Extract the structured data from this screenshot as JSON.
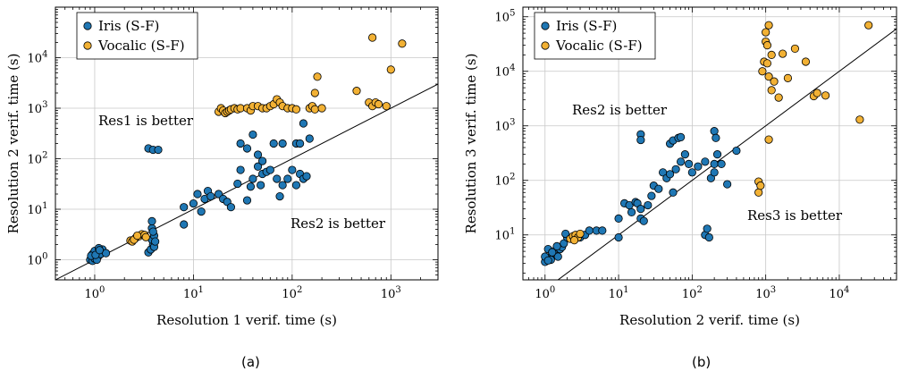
{
  "chart_data": [
    {
      "id": "a",
      "type": "scatter",
      "caption": "(a)",
      "xlabel": "Resolution 1 verif. time (s)",
      "ylabel": "Resolution 2 verif. time (s)",
      "xscale": "log",
      "yscale": "log",
      "xlim": [
        0.4,
        3000
      ],
      "ylim": [
        0.4,
        100000
      ],
      "xticks": [
        1,
        10,
        100,
        1000
      ],
      "yticks": [
        1,
        10,
        100,
        1000,
        10000
      ],
      "grid": true,
      "diagonal": true,
      "legend_position": "top-left",
      "annotations": [
        "Res1 is better",
        "Res2 is better"
      ],
      "series": [
        {
          "name": "Iris (S-F)",
          "color": "#1f77b4",
          "points": [
            [
              0.9,
              1.0
            ],
            [
              0.95,
              1.3
            ],
            [
              1.0,
              1.1
            ],
            [
              1.05,
              1.4
            ],
            [
              1.1,
              1.2
            ],
            [
              1.2,
              1.6
            ],
            [
              1.0,
              1.5
            ],
            [
              1.1,
              1.7
            ],
            [
              0.95,
              0.95
            ],
            [
              1.0,
              1.05
            ],
            [
              1.05,
              1.0
            ],
            [
              1.15,
              1.3
            ],
            [
              1.3,
              1.35
            ],
            [
              0.92,
              1.2
            ],
            [
              1.02,
              1.25
            ],
            [
              1.12,
              1.55
            ],
            [
              3.5,
              1.4
            ],
            [
              3.7,
              1.6
            ],
            [
              3.9,
              2.0
            ],
            [
              4.0,
              1.8
            ],
            [
              3.8,
              2.5
            ],
            [
              4.0,
              3.0
            ],
            [
              3.8,
              4.2
            ],
            [
              3.8,
              5.8
            ],
            [
              3.9,
              3.6
            ],
            [
              4.1,
              2.3
            ],
            [
              3.5,
              160
            ],
            [
              3.9,
              150
            ],
            [
              4.4,
              150
            ],
            [
              8,
              5
            ],
            [
              8,
              11
            ],
            [
              10,
              13
            ],
            [
              11,
              20
            ],
            [
              12,
              9
            ],
            [
              13,
              16
            ],
            [
              14,
              23
            ],
            [
              15,
              18
            ],
            [
              18,
              20
            ],
            [
              20,
              16
            ],
            [
              22,
              14
            ],
            [
              24,
              11
            ],
            [
              28,
              32
            ],
            [
              30,
              60
            ],
            [
              35,
              15
            ],
            [
              38,
              28
            ],
            [
              40,
              40
            ],
            [
              45,
              70
            ],
            [
              48,
              30
            ],
            [
              50,
              50
            ],
            [
              55,
              55
            ],
            [
              60,
              60
            ],
            [
              70,
              40
            ],
            [
              75,
              18
            ],
            [
              80,
              30
            ],
            [
              90,
              40
            ],
            [
              100,
              60
            ],
            [
              110,
              30
            ],
            [
              120,
              50
            ],
            [
              130,
              40
            ],
            [
              140,
              45
            ],
            [
              30,
              200
            ],
            [
              35,
              160
            ],
            [
              40,
              300
            ],
            [
              45,
              120
            ],
            [
              50,
              90
            ],
            [
              65,
              200
            ],
            [
              80,
              200
            ],
            [
              110,
              200
            ],
            [
              120,
              200
            ],
            [
              130,
              500
            ],
            [
              150,
              250
            ]
          ]
        },
        {
          "name": "Vocalic (S-F)",
          "color": "#f2b134",
          "points": [
            [
              2.3,
              2.4
            ],
            [
              2.4,
              2.3
            ],
            [
              2.6,
              2.7
            ],
            [
              2.8,
              2.9
            ],
            [
              3.0,
              3.2
            ],
            [
              3.2,
              3.1
            ],
            [
              2.5,
              2.5
            ],
            [
              2.7,
              3.0
            ],
            [
              3.3,
              2.8
            ],
            [
              18,
              850
            ],
            [
              19,
              1000
            ],
            [
              20,
              900
            ],
            [
              21,
              800
            ],
            [
              22,
              850
            ],
            [
              23,
              900
            ],
            [
              24,
              950
            ],
            [
              26,
              1000
            ],
            [
              28,
              950
            ],
            [
              30,
              1000
            ],
            [
              35,
              1000
            ],
            [
              38,
              900
            ],
            [
              40,
              1100
            ],
            [
              45,
              1100
            ],
            [
              50,
              1000
            ],
            [
              55,
              1000
            ],
            [
              60,
              1100
            ],
            [
              65,
              1200
            ],
            [
              70,
              1500
            ],
            [
              75,
              1300
            ],
            [
              80,
              1100
            ],
            [
              90,
              1000
            ],
            [
              100,
              1000
            ],
            [
              110,
              950
            ],
            [
              150,
              1000
            ],
            [
              160,
              1100
            ],
            [
              170,
              950
            ],
            [
              200,
              1000
            ],
            [
              170,
              2000
            ],
            [
              180,
              4200
            ],
            [
              450,
              2200
            ],
            [
              600,
              1300
            ],
            [
              650,
              1100
            ],
            [
              700,
              1300
            ],
            [
              750,
              1200
            ],
            [
              900,
              1100
            ],
            [
              1000,
              5800
            ],
            [
              650,
              25000
            ],
            [
              1300,
              19000
            ]
          ]
        }
      ]
    },
    {
      "id": "b",
      "type": "scatter",
      "caption": "(b)",
      "xlabel": "Resolution 2 verif. time (s)",
      "ylabel": "Resolution 3 verif. time (s)",
      "xscale": "log",
      "yscale": "log",
      "xlim": [
        0.5,
        60000
      ],
      "ylim": [
        1.5,
        150000
      ],
      "xticks": [
        1,
        10,
        100,
        1000,
        10000
      ],
      "yticks": [
        10,
        100,
        1000,
        10000,
        100000
      ],
      "grid": true,
      "diagonal": true,
      "legend_position": "top-left",
      "annotations": [
        "Res2 is better",
        "Res3 is better"
      ],
      "series": [
        {
          "name": "Iris (S-F)",
          "color": "#1f77b4",
          "points": [
            [
              1.0,
              3.2
            ],
            [
              1.1,
              3.6
            ],
            [
              1.2,
              4.0
            ],
            [
              1.3,
              4.2
            ],
            [
              1.4,
              4.5
            ],
            [
              1.0,
              4.0
            ],
            [
              1.1,
              5.5
            ],
            [
              1.2,
              3.5
            ],
            [
              1.3,
              5.0
            ],
            [
              1.5,
              4.0
            ],
            [
              1.6,
              5.5
            ],
            [
              1.7,
              6.0
            ],
            [
              1.8,
              7.0
            ],
            [
              2.0,
              9.0
            ],
            [
              1.9,
              10.5
            ],
            [
              1.1,
              3.4
            ],
            [
              1.25,
              4.8
            ],
            [
              1.45,
              6.2
            ],
            [
              3.0,
              9.0
            ],
            [
              3.5,
              10
            ],
            [
              4.0,
              12
            ],
            [
              5.0,
              12
            ],
            [
              6.0,
              12
            ],
            [
              10,
              9
            ],
            [
              10,
              20
            ],
            [
              12,
              38
            ],
            [
              14,
              35
            ],
            [
              15,
              26
            ],
            [
              17,
              40
            ],
            [
              18,
              38
            ],
            [
              20,
              30
            ],
            [
              20,
              20
            ],
            [
              22,
              18
            ],
            [
              25,
              35
            ],
            [
              28,
              52
            ],
            [
              30,
              80
            ],
            [
              35,
              70
            ],
            [
              40,
              140
            ],
            [
              45,
              110
            ],
            [
              50,
              130
            ],
            [
              55,
              60
            ],
            [
              60,
              160
            ],
            [
              70,
              220
            ],
            [
              80,
              300
            ],
            [
              90,
              200
            ],
            [
              100,
              140
            ],
            [
              120,
              180
            ],
            [
              150,
              220
            ],
            [
              180,
              110
            ],
            [
              200,
              140
            ],
            [
              200,
              200
            ],
            [
              220,
              300
            ],
            [
              250,
              200
            ],
            [
              300,
              85
            ],
            [
              400,
              350
            ],
            [
              20,
              700
            ],
            [
              20,
              550
            ],
            [
              50,
              470
            ],
            [
              55,
              540
            ],
            [
              65,
              600
            ],
            [
              70,
              620
            ],
            [
              150,
              10
            ],
            [
              160,
              13
            ],
            [
              170,
              9
            ],
            [
              200,
              800
            ],
            [
              210,
              600
            ]
          ]
        },
        {
          "name": "Vocalic (S-F)",
          "color": "#f2b134",
          "points": [
            [
              2.2,
              8.5
            ],
            [
              2.4,
              9.5
            ],
            [
              2.6,
              10
            ],
            [
              2.8,
              9.0
            ],
            [
              3.0,
              10.5
            ],
            [
              2.5,
              8.0
            ],
            [
              800,
              95
            ],
            [
              800,
              60
            ],
            [
              850,
              80
            ],
            [
              900,
              10000
            ],
            [
              950,
              15000
            ],
            [
              1000,
              52000
            ],
            [
              1000,
              35000
            ],
            [
              1050,
              30000
            ],
            [
              1050,
              14000
            ],
            [
              1100,
              8000
            ],
            [
              1100,
              70000
            ],
            [
              1200,
              20000
            ],
            [
              1300,
              6500
            ],
            [
              1200,
              4500
            ],
            [
              1500,
              3300
            ],
            [
              1700,
              21000
            ],
            [
              2000,
              7500
            ],
            [
              2500,
              26000
            ],
            [
              3500,
              15000
            ],
            [
              4500,
              3500
            ],
            [
              5000,
              4000
            ],
            [
              6500,
              3600
            ],
            [
              1100,
              560
            ],
            [
              19000,
              1300
            ],
            [
              25000,
              70000
            ]
          ]
        }
      ]
    }
  ]
}
